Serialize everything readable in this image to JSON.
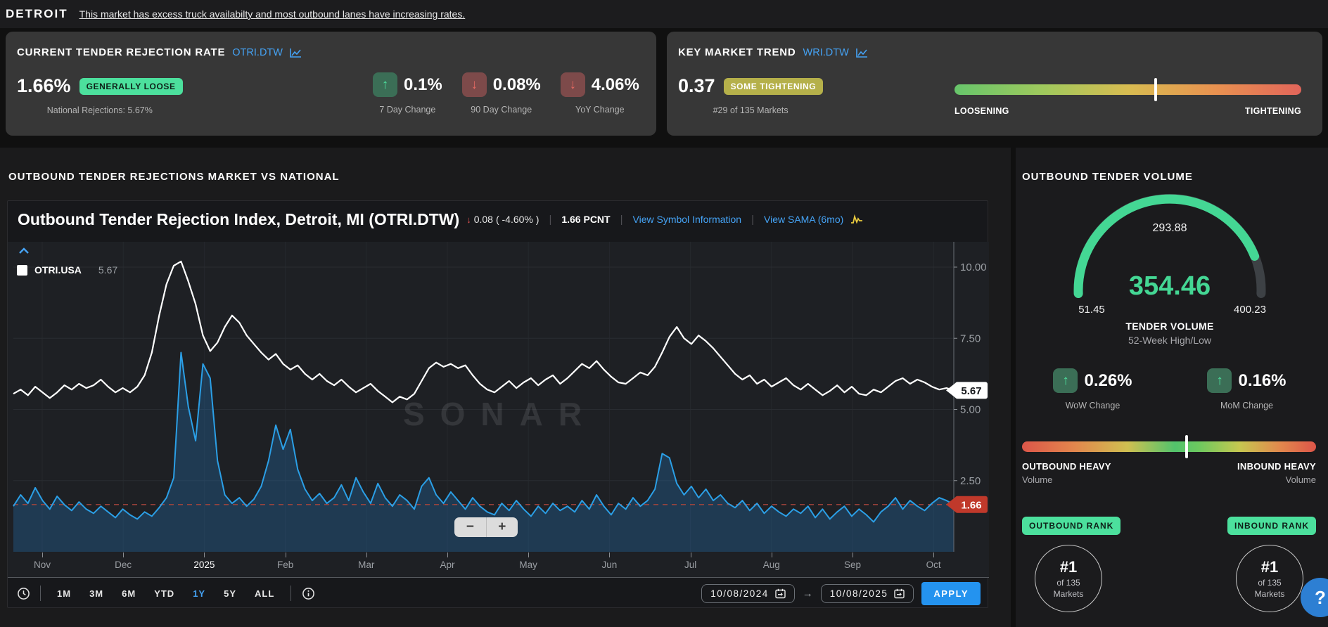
{
  "header": {
    "market": "DETROIT",
    "summary_link": "This market has excess truck availabilty and most outbound lanes have increasing rates."
  },
  "rejection_card": {
    "title": "CURRENT TENDER REJECTION RATE",
    "symbol": "OTRI.DTW",
    "value": "1.66%",
    "badge": "GENERALLY LOOSE",
    "subtext": "National Rejections: 5.67%",
    "changes": [
      {
        "direction": "up",
        "value": "0.1%",
        "label": "7 Day Change"
      },
      {
        "direction": "down",
        "value": "0.08%",
        "label": "90 Day Change"
      },
      {
        "direction": "down",
        "value": "4.06%",
        "label": "YoY Change"
      }
    ]
  },
  "trend_card": {
    "title": "KEY MARKET TREND",
    "symbol": "WRI.DTW",
    "value": "0.37",
    "badge": "SOME TIGHTENING",
    "subtext": "#29 of 135 Markets",
    "scale": {
      "left_label": "LOOSENING",
      "right_label": "TIGHTENING",
      "marker_pct": 58
    }
  },
  "chart_section": {
    "heading": "OUTBOUND TENDER REJECTIONS MARKET VS NATIONAL",
    "chart_title": "Outbound Tender Rejection Index, Detroit, MI (OTRI.DTW)",
    "change_abs": "0.08",
    "change_pct": "( -4.60% )",
    "current": "1.66 PCNT",
    "link_symbol_info": "View Symbol Information",
    "link_sama": "View SAMA (6mo)",
    "legend": {
      "series": "OTRI.USA",
      "value": "5.67"
    },
    "watermark": "SONAR",
    "ranges": [
      "1M",
      "3M",
      "6M",
      "YTD",
      "1Y",
      "5Y",
      "ALL"
    ],
    "active_range": "1Y",
    "date_from": "10/08/2024",
    "date_to": "10/08/2025",
    "apply_label": "APPLY",
    "zoom_out_label": "−",
    "zoom_in_label": "+"
  },
  "chart_data": {
    "type": "line",
    "title": "Outbound Tender Rejection Index, Detroit, MI (OTRI.DTW)",
    "unit": "PCNT",
    "x_labels": [
      "Nov",
      "Dec",
      "2025",
      "Feb",
      "Mar",
      "Apr",
      "May",
      "Jun",
      "Jul",
      "Aug",
      "Sep",
      "Oct"
    ],
    "highlight_x_label": "2025",
    "y_ticks": [
      2.5,
      5.0,
      7.5,
      10.0
    ],
    "ylim": [
      0,
      10.9
    ],
    "legend_position": "top-left",
    "grid": true,
    "reference_line": {
      "value": 1.66,
      "color": "#a8453c",
      "style": "dashed"
    },
    "series": [
      {
        "name": "OTRI.USA",
        "color": "#ffffff",
        "last_value": "5.67",
        "values": [
          5.55,
          5.7,
          5.5,
          5.8,
          5.6,
          5.4,
          5.6,
          5.85,
          5.7,
          5.9,
          5.75,
          5.85,
          6.05,
          5.8,
          5.6,
          5.75,
          5.6,
          5.8,
          6.2,
          7.0,
          8.3,
          9.4,
          10.05,
          10.2,
          9.5,
          8.7,
          7.6,
          7.05,
          7.35,
          7.9,
          8.3,
          8.05,
          7.6,
          7.3,
          7.0,
          6.75,
          6.95,
          6.6,
          6.4,
          6.55,
          6.25,
          6.05,
          6.25,
          6.0,
          5.85,
          6.05,
          5.8,
          5.6,
          5.75,
          5.9,
          5.65,
          5.45,
          5.25,
          5.45,
          5.35,
          5.55,
          6.0,
          6.45,
          6.65,
          6.5,
          6.6,
          6.45,
          6.55,
          6.2,
          5.9,
          5.7,
          5.6,
          5.8,
          6.0,
          5.75,
          5.95,
          6.1,
          5.85,
          6.05,
          6.2,
          5.9,
          6.1,
          6.35,
          6.6,
          6.45,
          6.7,
          6.4,
          6.15,
          5.95,
          5.9,
          6.1,
          6.3,
          6.2,
          6.5,
          7.0,
          7.55,
          7.9,
          7.5,
          7.3,
          7.6,
          7.4,
          7.15,
          6.85,
          6.55,
          6.25,
          6.05,
          6.2,
          5.9,
          6.05,
          5.8,
          5.95,
          6.1,
          5.85,
          5.7,
          5.9,
          5.7,
          5.5,
          5.65,
          5.85,
          5.6,
          5.8,
          5.55,
          5.5,
          5.7,
          5.6,
          5.8,
          6.0,
          6.1,
          5.9,
          6.05,
          5.95,
          5.8,
          5.7,
          5.75,
          5.67
        ]
      },
      {
        "name": "OTRI.DTW",
        "color": "#2b9fe6",
        "last_value": "1.66",
        "values": [
          1.6,
          2.0,
          1.7,
          2.25,
          1.8,
          1.5,
          1.95,
          1.65,
          1.45,
          1.75,
          1.5,
          1.35,
          1.6,
          1.4,
          1.2,
          1.5,
          1.3,
          1.15,
          1.4,
          1.25,
          1.55,
          1.9,
          2.6,
          7.0,
          5.1,
          3.9,
          6.6,
          6.1,
          3.2,
          2.0,
          1.7,
          1.9,
          1.6,
          1.85,
          2.3,
          3.2,
          4.45,
          3.6,
          4.3,
          2.9,
          2.2,
          1.8,
          2.05,
          1.7,
          1.9,
          2.35,
          1.8,
          2.6,
          2.1,
          1.7,
          2.4,
          1.9,
          1.6,
          2.0,
          1.8,
          1.5,
          2.3,
          2.6,
          2.0,
          1.7,
          2.1,
          1.8,
          1.5,
          1.9,
          1.6,
          1.4,
          1.3,
          1.7,
          1.45,
          1.8,
          1.5,
          1.25,
          1.6,
          1.35,
          1.7,
          1.45,
          1.6,
          1.4,
          1.8,
          1.5,
          2.0,
          1.6,
          1.3,
          1.7,
          1.5,
          1.9,
          1.6,
          1.8,
          2.2,
          3.45,
          3.3,
          2.4,
          2.0,
          2.3,
          1.9,
          2.2,
          1.8,
          2.0,
          1.7,
          1.55,
          1.8,
          1.45,
          1.7,
          1.35,
          1.6,
          1.4,
          1.25,
          1.5,
          1.35,
          1.6,
          1.2,
          1.5,
          1.15,
          1.4,
          1.6,
          1.25,
          1.5,
          1.3,
          1.05,
          1.4,
          1.6,
          1.9,
          1.5,
          1.8,
          1.6,
          1.45,
          1.7,
          1.9,
          1.8,
          1.66
        ]
      }
    ]
  },
  "volume_panel": {
    "heading": "OUTBOUND TENDER VOLUME",
    "gauge": {
      "current": "354.46",
      "top_value": "293.88",
      "low": "51.45",
      "high": "400.23",
      "caption_1": "TENDER VOLUME",
      "caption_2": "52-Week High/Low",
      "fill_pct": 87
    },
    "changes": [
      {
        "direction": "up",
        "value": "0.26%",
        "label": "WoW Change"
      },
      {
        "direction": "up",
        "value": "0.16%",
        "label": "MoM Change"
      }
    ],
    "balance": {
      "left_label": "OUTBOUND HEAVY",
      "left_sub": "Volume",
      "right_label": "INBOUND HEAVY",
      "right_sub": "Volume",
      "marker_pct": 56
    },
    "ranks": [
      {
        "badge": "OUTBOUND RANK",
        "rank": "#1",
        "of": "of 135",
        "scope": "Markets"
      },
      {
        "badge": "INBOUND RANK",
        "rank": "#1",
        "of": "of 135",
        "scope": "Markets"
      }
    ],
    "help_label": "?"
  },
  "colors": {
    "accent_blue": "#45a3f5",
    "apply_blue": "#2493ef",
    "mint_green": "#4ce09d",
    "gauge_green": "#44d794",
    "olive": "#b5b04a",
    "up_green_bg": "#3b6e56",
    "down_red_bg": "#7d4a4a",
    "red_badge": "#c0392b",
    "series_blue": "#2b9fe6",
    "reference_red": "#a8453c"
  }
}
